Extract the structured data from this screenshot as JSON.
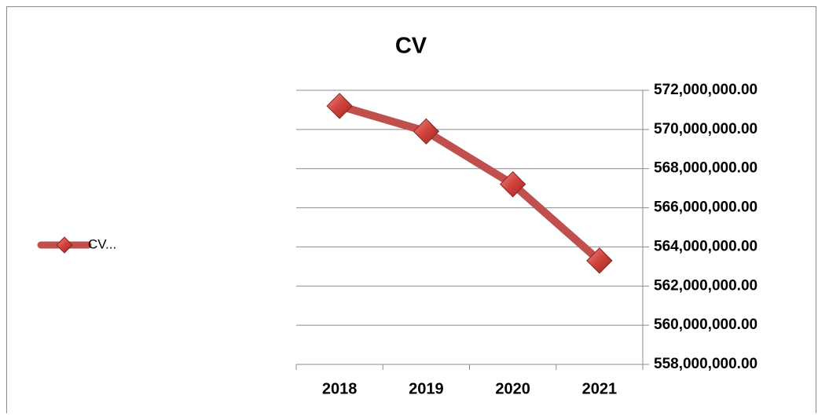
{
  "chart_data": {
    "type": "line",
    "title": "CV",
    "categories": [
      "2018",
      "2019",
      "2020",
      "2021"
    ],
    "series": [
      {
        "name": "CV...",
        "color": "#c0504d",
        "values": [
          571200000,
          569900000,
          567200000,
          563300000
        ]
      }
    ],
    "ylim": [
      558000000,
      572000000
    ],
    "yticks": [
      {
        "value": 558000000,
        "label": "558,000,000.00"
      },
      {
        "value": 560000000,
        "label": "560,000,000.00"
      },
      {
        "value": 562000000,
        "label": "562,000,000.00"
      },
      {
        "value": 564000000,
        "label": "564,000,000.00"
      },
      {
        "value": 566000000,
        "label": "566,000,000.00"
      },
      {
        "value": 568000000,
        "label": "568,000,000.00"
      },
      {
        "value": 570000000,
        "label": "570,000,000.00"
      },
      {
        "value": 572000000,
        "label": "572,000,000.00"
      }
    ],
    "grid": true,
    "legend": "left",
    "yaxis_side": "right"
  }
}
